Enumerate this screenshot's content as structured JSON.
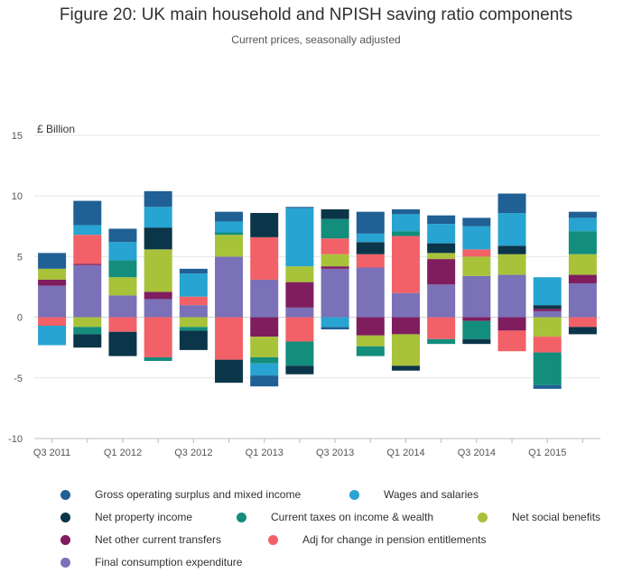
{
  "chart_data": {
    "type": "bar",
    "stacked": true,
    "title": "Figure 20: UK main household and NPISH saving ratio components",
    "subtitle": "Current prices, seasonally adjusted",
    "ylabel": "£ Billion",
    "ylim": [
      -10,
      15
    ],
    "yticks": [
      -10,
      -5,
      0,
      5,
      10,
      15
    ],
    "grid": true,
    "legend_position": "bottom",
    "categories": [
      "Q3 2011",
      "Q4 2011",
      "Q1 2012",
      "Q2 2012",
      "Q3 2012",
      "Q4 2012",
      "Q1 2013",
      "Q2 2013",
      "Q3 2013",
      "Q4 2013",
      "Q1 2014",
      "Q2 2014",
      "Q3 2014",
      "Q4 2014",
      "Q1 2015",
      "Q2 2015"
    ],
    "xtick_labels": [
      "Q3 2011",
      "",
      "Q1 2012",
      "",
      "Q3 2012",
      "",
      "Q1 2013",
      "",
      "Q3 2013",
      "",
      "Q1 2014",
      "",
      "Q3 2014",
      "",
      "Q1 2015",
      ""
    ],
    "series": [
      {
        "name": "Final consumption expenditure",
        "color": "#7a71b8",
        "values": [
          2.6,
          4.3,
          1.8,
          1.5,
          1.0,
          5.0,
          3.1,
          0.8,
          4.0,
          4.1,
          2.0,
          2.7,
          3.4,
          3.5,
          0.5,
          2.8
        ]
      },
      {
        "name": "Net other current transfers",
        "color": "#7f1d5f",
        "values": [
          0.5,
          0.1,
          0.0,
          0.6,
          0.0,
          0.0,
          -1.6,
          2.1,
          0.2,
          -1.5,
          -1.4,
          2.1,
          -0.3,
          -1.1,
          0.2,
          0.7
        ]
      },
      {
        "name": "Net social benefits",
        "color": "#a8c23a",
        "values": [
          0.9,
          -0.8,
          1.5,
          3.5,
          -0.8,
          1.8,
          -1.7,
          1.3,
          1.0,
          -0.9,
          -2.6,
          0.5,
          1.6,
          1.7,
          -1.6,
          1.7
        ]
      },
      {
        "name": "Adj for change in pension entitlements",
        "color": "#f26168",
        "values": [
          -0.7,
          2.4,
          -1.2,
          -3.3,
          0.7,
          -3.5,
          3.5,
          -2.0,
          1.3,
          1.1,
          4.7,
          -1.8,
          0.6,
          -1.7,
          -1.3,
          -0.8
        ]
      },
      {
        "name": "Current taxes on income & wealth",
        "color": "#138d7c",
        "values": [
          0.0,
          -0.6,
          1.4,
          -0.3,
          -0.3,
          0.2,
          -0.5,
          -2.0,
          1.6,
          -0.8,
          0.4,
          -0.4,
          -1.5,
          0.0,
          -2.7,
          1.9
        ]
      },
      {
        "name": "Net property income",
        "color": "#0b3549",
        "values": [
          0.0,
          -1.1,
          -2.0,
          1.8,
          -1.6,
          -1.9,
          2.0,
          -0.7,
          0.8,
          1.0,
          -0.4,
          0.8,
          -0.4,
          0.7,
          0.3,
          -0.6
        ]
      },
      {
        "name": "Wages and salaries",
        "color": "#27a4d1",
        "values": [
          -1.6,
          0.8,
          1.5,
          1.7,
          1.9,
          0.9,
          -1.0,
          4.8,
          -0.8,
          0.7,
          1.4,
          1.6,
          1.9,
          2.7,
          2.3,
          1.1
        ]
      },
      {
        "name": "Gross operating surplus and mixed income",
        "color": "#206095",
        "values": [
          1.3,
          2.0,
          1.1,
          1.3,
          0.4,
          0.8,
          -0.9,
          0.1,
          -0.2,
          1.8,
          0.4,
          0.7,
          0.7,
          1.6,
          -0.3,
          0.5
        ]
      }
    ]
  },
  "legend_order": [
    "Gross operating surplus and mixed income",
    "Wages and salaries",
    "Net property income",
    "Current taxes on income & wealth",
    "Net social benefits",
    "Net other current transfers",
    "Adj for change in pension entitlements",
    "Final consumption expenditure"
  ]
}
